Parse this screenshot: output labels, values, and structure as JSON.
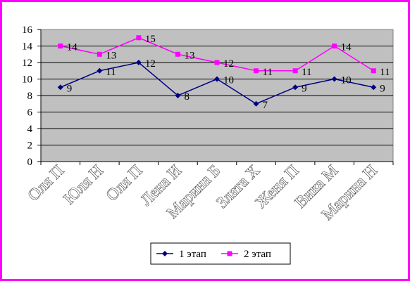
{
  "chart_data": {
    "type": "line",
    "categories": [
      "Оля П",
      "Юля Н",
      "Оля П",
      "Лена И",
      "Марина Б",
      "Злата Х",
      "Женя П",
      "Вика М",
      "Марина Н"
    ],
    "series": [
      {
        "name": "1 этап",
        "values": [
          9,
          11,
          12,
          8,
          10,
          7,
          9,
          10,
          9
        ],
        "color": "#000080",
        "marker": "diamond"
      },
      {
        "name": "2 этап",
        "values": [
          14,
          13,
          15,
          13,
          12,
          11,
          11,
          14,
          11
        ],
        "color": "#ff00ff",
        "marker": "square"
      }
    ],
    "ylim": [
      0,
      16
    ],
    "yticks": [
      0,
      2,
      4,
      6,
      8,
      10,
      12,
      14,
      16
    ],
    "grid": true,
    "plot_background": "#c0c0c0",
    "border_color": "#ff00ff",
    "legend_position": "bottom",
    "data_labels": true,
    "title": "",
    "xlabel": "",
    "ylabel": ""
  }
}
